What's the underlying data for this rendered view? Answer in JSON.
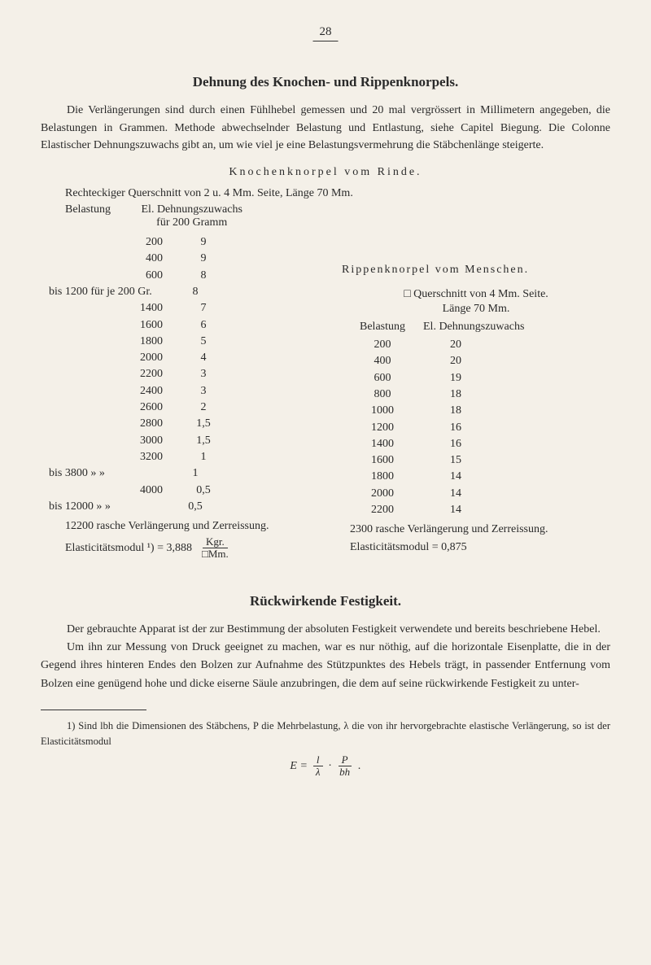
{
  "page_number": "28",
  "title": "Dehnung des Knochen- und Rippenknorpels.",
  "intro_p1": "Die Verlängerungen sind durch einen Fühlhebel gemessen und 20 mal vergrössert in Millimetern angegeben, die Belastungen in Grammen. Methode abwechselnder Belastung und Entlastung, siehe Capitel Biegung. Die Colonne Elastischer Dehnungszuwachs gibt an, um wie viel je eine Belastungsvermehrung die Stäbchenlänge steigerte.",
  "sub_title": "Knochenknorpel vom Rinde.",
  "table_header_left": "Rechteckiger Querschnitt von 2 u. 4 Mm. Seite, Länge 70 Mm.",
  "belastung_line1": "Belastung",
  "belastung_line2a": "El. Dehnungszuwachs",
  "belastung_line2b": "für 200 Gramm",
  "left_rows": [
    {
      "a": "200",
      "b": "9"
    },
    {
      "a": "400",
      "b": "9"
    },
    {
      "a": "600",
      "b": "8"
    },
    {
      "a": "bis 1200 für je 200 Gr.",
      "b": "8"
    },
    {
      "a": "1400",
      "b": "7"
    },
    {
      "a": "1600",
      "b": "6"
    },
    {
      "a": "1800",
      "b": "5"
    },
    {
      "a": "2000",
      "b": "4"
    },
    {
      "a": "2200",
      "b": "3"
    },
    {
      "a": "2400",
      "b": "3"
    },
    {
      "a": "2600",
      "b": "2"
    },
    {
      "a": "2800",
      "b": "1,5"
    },
    {
      "a": "3000",
      "b": "1,5"
    },
    {
      "a": "3200",
      "b": "1"
    },
    {
      "a": "bis 3800   »     »",
      "b": "1"
    },
    {
      "a": "4000",
      "b": "0,5"
    },
    {
      "a": "bis 12000   »     »",
      "b": "0,5"
    }
  ],
  "left_note1": "12200 rasche Verlängerung und Zerreissung.",
  "left_note2a": "Elasticitätsmodul ¹) = 3,888",
  "frac_num": "Kgr.",
  "frac_den": "□Mm.",
  "right_title": "Rippenknorpel vom Menschen.",
  "right_sub1": "□ Querschnitt von 4 Mm. Seite.",
  "right_sub2": "Länge 70 Mm.",
  "right_h1": "Belastung",
  "right_h2": "El. Dehnungszuwachs",
  "right_rows": [
    {
      "a": "200",
      "b": "20"
    },
    {
      "a": "400",
      "b": "20"
    },
    {
      "a": "600",
      "b": "19"
    },
    {
      "a": "800",
      "b": "18"
    },
    {
      "a": "1000",
      "b": "18"
    },
    {
      "a": "1200",
      "b": "16"
    },
    {
      "a": "1400",
      "b": "16"
    },
    {
      "a": "1600",
      "b": "15"
    },
    {
      "a": "1800",
      "b": "14"
    },
    {
      "a": "2000",
      "b": "14"
    },
    {
      "a": "2200",
      "b": "14"
    }
  ],
  "right_note1": "2300 rasche Verlängerung und Zerreissung.",
  "right_note2": "Elasticitätsmodul = 0,875",
  "section2_title": "Rückwirkende Festigkeit.",
  "section2_p1": "Der gebrauchte Apparat ist der zur Bestimmung der absoluten Festigkeit verwendete und bereits beschriebene Hebel.",
  "section2_p2": "Um ihn zur Messung von Druck geeignet zu machen, war es nur nöthig, auf die horizontale Eisenplatte, die in der Gegend ihres hinteren Endes den Bolzen zur Aufnahme des Stützpunktes des Hebels trägt, in passender Entfernung vom Bolzen eine genügend hohe und dicke eiserne Säule anzubringen, die dem auf seine rückwirkende Festigkeit zu unter-",
  "footnote_text": "1) Sind lbh die Dimensionen des Stäbchens, P die Mehrbelastung, λ die von ihr hervorgebrachte elastische Verlängerung, so ist der Elasticitätsmodul",
  "formula_E": "E =",
  "formula_f1n": "l",
  "formula_f1d": "λ",
  "formula_dot": "·",
  "formula_f2n": "P",
  "formula_f2d": "bh",
  "formula_end": "."
}
